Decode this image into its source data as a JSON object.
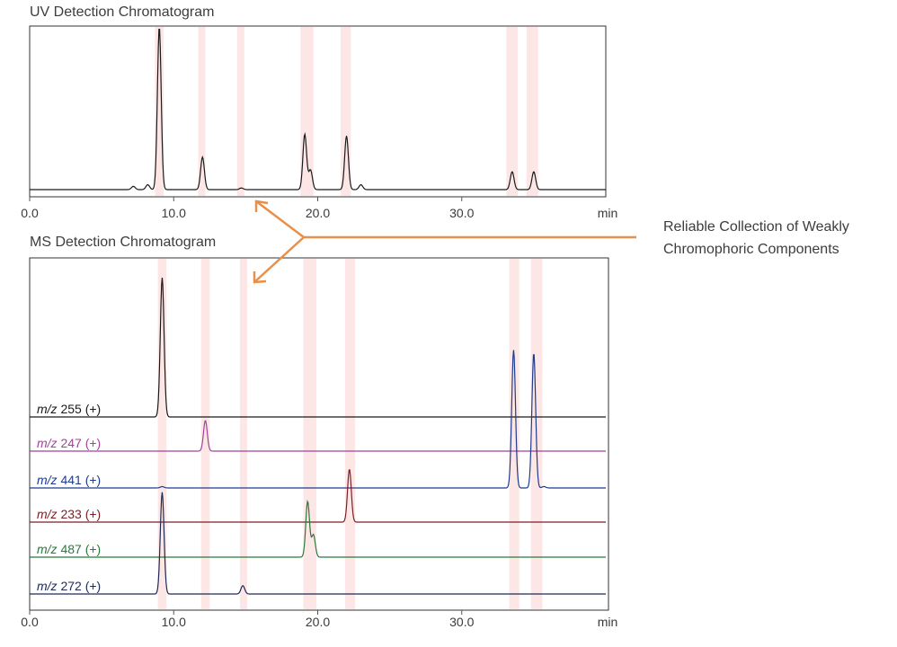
{
  "chart_data": [
    {
      "type": "line",
      "title": "UV Detection Chromatogram",
      "xlabel": "min",
      "xlim": [
        0,
        40
      ],
      "x_ticks": [
        "0.0",
        "10.0",
        "20.0",
        "30.0"
      ],
      "x_unit_label": "min",
      "highlight_regions_min": [
        [
          8.7,
          9.3
        ],
        [
          11.7,
          12.2
        ],
        [
          14.4,
          14.9
        ],
        [
          18.8,
          19.7
        ],
        [
          21.6,
          22.3
        ],
        [
          33.1,
          33.9
        ],
        [
          34.5,
          35.3
        ]
      ],
      "series": [
        {
          "color": "#1a1a1a",
          "peaks": [
            {
              "rt": 7.2,
              "height": 0.02
            },
            {
              "rt": 8.2,
              "height": 0.03
            },
            {
              "rt": 9.0,
              "height": 1.0
            },
            {
              "rt": 12.0,
              "height": 0.2
            },
            {
              "rt": 14.7,
              "height": 0.01
            },
            {
              "rt": 19.1,
              "height": 0.34
            },
            {
              "rt": 19.5,
              "height": 0.12
            },
            {
              "rt": 22.0,
              "height": 0.33
            },
            {
              "rt": 23.0,
              "height": 0.03
            },
            {
              "rt": 33.5,
              "height": 0.11
            },
            {
              "rt": 35.0,
              "height": 0.11
            }
          ]
        }
      ]
    },
    {
      "type": "line",
      "title": "MS Detection Chromatogram",
      "xlabel": "min",
      "xlim": [
        0,
        40
      ],
      "x_ticks": [
        "0.0",
        "10.0",
        "20.0",
        "30.0"
      ],
      "x_unit_label": "min",
      "highlight_regions_min": [
        [
          8.9,
          9.5
        ],
        [
          11.9,
          12.5
        ],
        [
          14.6,
          15.1
        ],
        [
          19.0,
          19.9
        ],
        [
          21.9,
          22.6
        ],
        [
          33.3,
          34.0
        ],
        [
          34.8,
          35.6
        ]
      ],
      "series": [
        {
          "label_italic": "m/z",
          "label_rest": " 255 (+)",
          "color": "#1a1a1a",
          "peaks": [
            {
              "rt": 9.2,
              "height": 1.0
            }
          ]
        },
        {
          "label_italic": "m/z",
          "label_rest": " 247 (+)",
          "color": "#a0449a",
          "peaks": [
            {
              "rt": 12.2,
              "height": 0.22
            }
          ]
        },
        {
          "label_italic": "m/z",
          "label_rest": " 441 (+)",
          "color": "#1f3c8c",
          "peaks": [
            {
              "rt": 9.2,
              "height": 0.01
            },
            {
              "rt": 33.6,
              "height": 0.99
            },
            {
              "rt": 35.0,
              "height": 0.97
            },
            {
              "rt": 35.7,
              "height": 0.01
            }
          ]
        },
        {
          "label_italic": "m/z",
          "label_rest": " 233 (+)",
          "color": "#7a1f26",
          "peaks": [
            {
              "rt": 22.2,
              "height": 0.38
            }
          ]
        },
        {
          "label_italic": "m/z",
          "label_rest": " 487 (+)",
          "color": "#2a7a3a",
          "peaks": [
            {
              "rt": 19.3,
              "height": 0.4
            },
            {
              "rt": 19.7,
              "height": 0.16
            }
          ]
        },
        {
          "label_italic": "m/z",
          "label_rest": " 272 (+)",
          "color": "#1e2a55",
          "peaks": [
            {
              "rt": 9.2,
              "height": 0.73
            },
            {
              "rt": 14.8,
              "height": 0.06
            }
          ]
        }
      ]
    }
  ],
  "annotation": {
    "line1": "Reliable Collection of Weakly",
    "line2": "Chromophoric Components",
    "arrow_color": "#e8904a"
  },
  "highlight_color": "#fde6e6"
}
